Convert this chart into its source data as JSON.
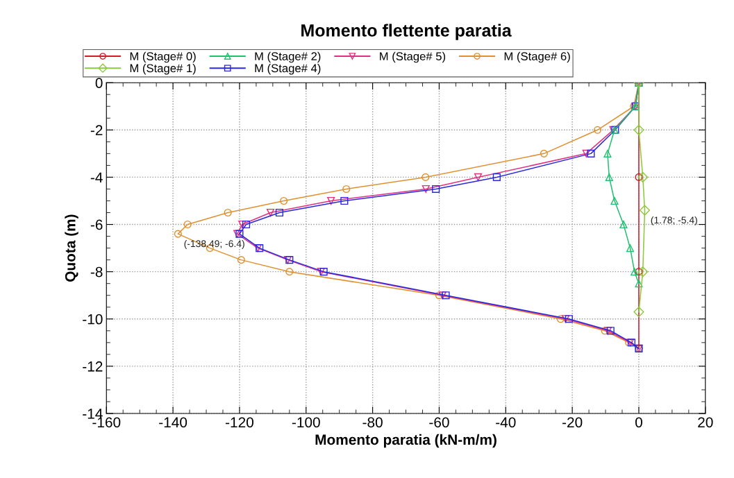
{
  "chart_data": {
    "type": "line",
    "title": "Momento flettente paratia",
    "xlabel": "Momento paratia (kN-m/m)",
    "ylabel": "Quota (m)",
    "xlim": [
      -160,
      20
    ],
    "xticks": [
      -160,
      -140,
      -120,
      -100,
      -80,
      -60,
      -40,
      -20,
      0,
      20
    ],
    "ylim": [
      -14,
      0
    ],
    "yticks": [
      -14,
      -12,
      -10,
      -8,
      -6,
      -4,
      -2,
      0
    ],
    "grid": true,
    "legend": "top",
    "line_style": "solid",
    "series": [
      {
        "name": "M (Stage# 0)",
        "color": "#d01c2c",
        "marker": "circle",
        "x": [
          0,
          0,
          0,
          0
        ],
        "values": [
          0,
          -4,
          -8,
          -11.25
        ]
      },
      {
        "name": "M (Stage# 1)",
        "color": "#8cc83c",
        "marker": "diamond",
        "x": [
          0,
          0,
          1.2,
          1.78,
          1.2,
          0
        ],
        "values": [
          0,
          -2,
          -4,
          -5.4,
          -8,
          -9.7
        ]
      },
      {
        "name": "M (Stage# 2)",
        "color": "#20c070",
        "marker": "triangle",
        "x": [
          0,
          -1,
          -7.3,
          -9.4,
          -8.9,
          -7.3,
          -4.6,
          -2.6,
          -1.3,
          0
        ],
        "values": [
          0,
          -1,
          -2,
          -3,
          -4,
          -5,
          -6,
          -7,
          -8,
          -8.5
        ]
      },
      {
        "name": "M (Stage# 4)",
        "color": "#2828e0",
        "marker": "square",
        "x": [
          0,
          -1,
          -7.1,
          -14.4,
          -42.7,
          -61,
          -88.5,
          -108,
          -118,
          -120,
          -114,
          -105,
          -94.7,
          -58,
          -21,
          -8.5,
          -2.2,
          0
        ],
        "values": [
          0,
          -1,
          -2,
          -3,
          -4,
          -4.5,
          -5,
          -5.5,
          -6,
          -6.4,
          -7,
          -7.5,
          -8,
          -9,
          -10,
          -10.5,
          -11,
          -11.25
        ]
      },
      {
        "name": "M (Stage# 5)",
        "color": "#e0307f",
        "marker": "triangle_down",
        "x": [
          0,
          -1,
          -7.7,
          -15.8,
          -48.3,
          -64,
          -92.5,
          -110.7,
          -119.2,
          -120.7,
          -114.5,
          -105.5,
          -95.5,
          -59,
          -22,
          -9.3,
          -2.6,
          0
        ],
        "values": [
          0,
          -1,
          -2,
          -3,
          -4,
          -4.5,
          -5,
          -5.5,
          -6,
          -6.4,
          -7,
          -7.5,
          -8,
          -9,
          -10,
          -10.5,
          -11,
          -11.25
        ]
      },
      {
        "name": "M (Stage# 6)",
        "color": "#e09030",
        "marker": "circle",
        "x": [
          0,
          -1.5,
          -12.4,
          -28.5,
          -64.1,
          -87.9,
          -106.7,
          -123.5,
          -135.6,
          -138.49,
          -128.9,
          -119.5,
          -105,
          -60,
          -23.5,
          -10.2,
          -3,
          0
        ],
        "values": [
          0,
          -1,
          -2,
          -3,
          -4,
          -4.5,
          -5,
          -5.5,
          -6,
          -6.4,
          -7,
          -7.5,
          -8,
          -9,
          -10,
          -10.5,
          -11,
          -11.25
        ]
      }
    ],
    "annotations": [
      {
        "text": "(-138.49; -6.4)",
        "x": -138.49,
        "y": -6.4
      },
      {
        "text": "(1.78; -5.4)",
        "x": 1.78,
        "y": -5.4
      }
    ]
  }
}
